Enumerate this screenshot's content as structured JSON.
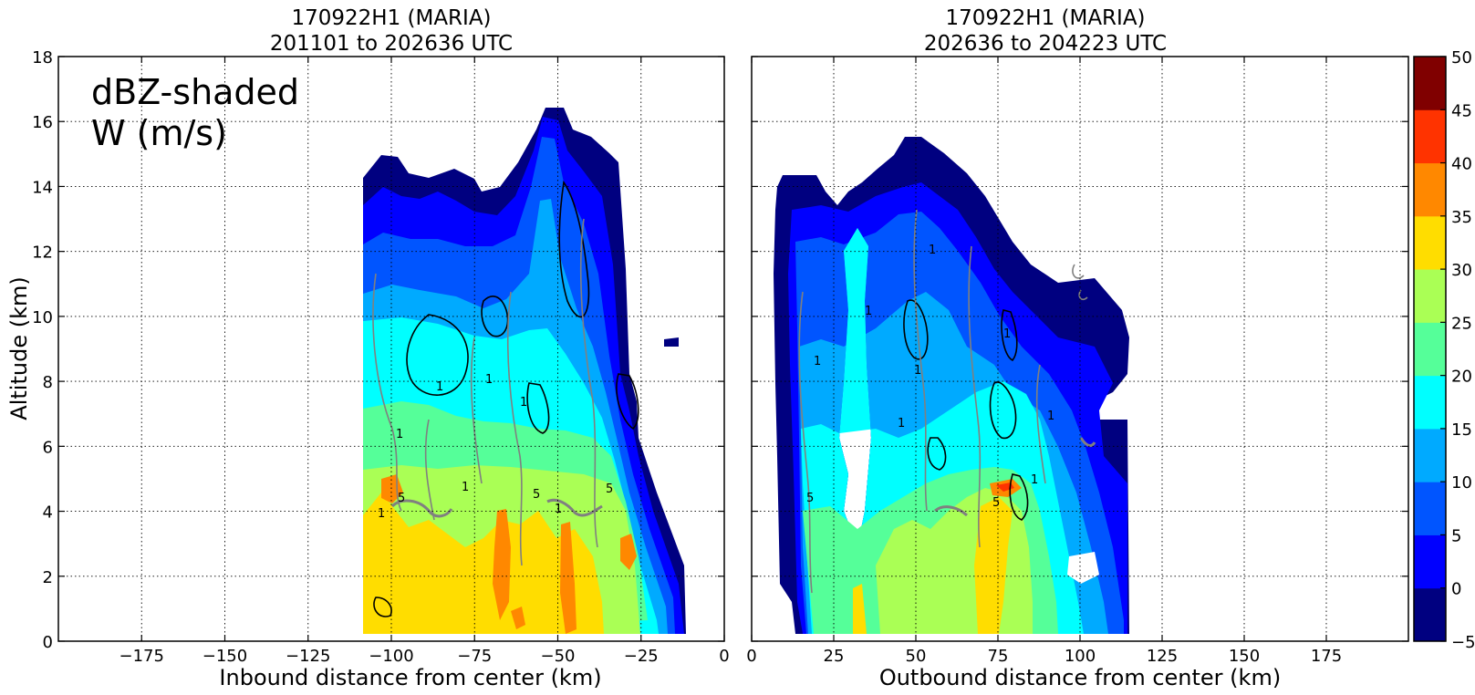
{
  "chart_data": [
    {
      "type": "contour",
      "panel": "left",
      "title_line1": "170922H1 (MARIA)",
      "title_line2": "201101 to 202636 UTC",
      "xlabel": "Inbound distance from center (km)",
      "ylabel": "Altitude (km)",
      "xlim": [
        -200,
        0
      ],
      "ylim": [
        0,
        18
      ],
      "x_ticks": [
        -175,
        -150,
        -125,
        -100,
        -75,
        -50,
        -25,
        0
      ],
      "x_tick_labels": [
        "−175",
        "−150",
        "−125",
        "−100",
        "−75",
        "−50",
        "−25",
        "0"
      ],
      "y_ticks": [
        0,
        2,
        4,
        6,
        8,
        10,
        12,
        14,
        16,
        18
      ],
      "annotation_line1": "dBZ-shaded",
      "annotation_line2": "W (m/s)",
      "grid": true,
      "contour_labels": [
        "1",
        "1",
        "1",
        "1",
        "5",
        "1",
        "5",
        "1",
        "5",
        "1"
      ],
      "data_extent": {
        "x": [
          -112,
          -15
        ],
        "y": [
          0.5,
          16.5
        ]
      }
    },
    {
      "type": "contour",
      "panel": "right",
      "title_line1": "170922H1 (MARIA)",
      "title_line2": "202636 to 204223 UTC",
      "xlabel": "Outbound distance from center (km)",
      "xlim": [
        0,
        200
      ],
      "ylim": [
        0,
        18
      ],
      "x_ticks": [
        0,
        25,
        50,
        75,
        100,
        125,
        150,
        175
      ],
      "x_tick_labels": [
        "0",
        "25",
        "50",
        "75",
        "100",
        "125",
        "150",
        "175"
      ],
      "grid": true,
      "contour_labels": [
        "1",
        "1",
        "1",
        "1",
        "1",
        "5",
        "1",
        "1",
        "5",
        "1"
      ],
      "data_extent": {
        "x": [
          9,
          117
        ],
        "y": [
          0.5,
          15.7
        ]
      }
    }
  ],
  "colorbar": {
    "levels": [
      -5,
      0,
      5,
      10,
      15,
      20,
      25,
      30,
      35,
      40,
      45,
      50
    ],
    "tick_labels": [
      "−5",
      "0",
      "5",
      "10",
      "15",
      "20",
      "25",
      "30",
      "35",
      "40",
      "45",
      "50"
    ],
    "colors": [
      "#000080",
      "#0000ff",
      "#0055ff",
      "#00aaff",
      "#00ffff",
      "#55ff99",
      "#aaff55",
      "#ffdd00",
      "#ff8800",
      "#ff3300",
      "#800000"
    ]
  },
  "colors": {
    "w_contour_positive": "#000000",
    "w_contour_other": "#808080",
    "grid": "#000000"
  }
}
